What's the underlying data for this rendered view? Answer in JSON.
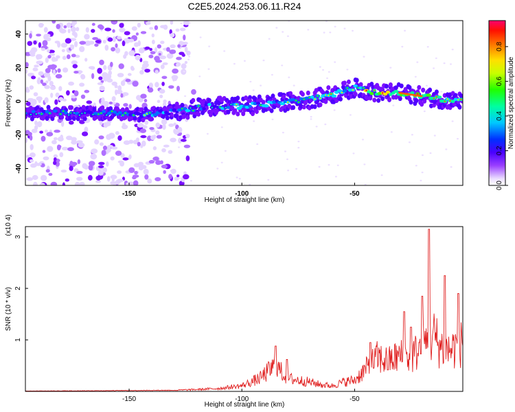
{
  "chart_data": [
    {
      "type": "heatmap",
      "title": "C2E5.2024.253.06.11.R24",
      "xlabel": "Height of straight line (km)",
      "ylabel": "Frequency (Hz)",
      "xlim": [
        -196,
        -2
      ],
      "ylim": [
        -50,
        48
      ],
      "x_ticks": [
        -150,
        -100,
        -50
      ],
      "y_ticks": [
        -40,
        -20,
        0,
        20,
        40
      ],
      "colorbar": {
        "label": "Normalized spectral amplitude",
        "range": [
          0,
          0.95
        ],
        "ticks": [
          0.0,
          0.2,
          0.4,
          0.6,
          0.8
        ]
      },
      "ridge": {
        "description_points_x": [
          -190,
          -175,
          -160,
          -145,
          -130,
          -115,
          -100,
          -85,
          -70,
          -60,
          -50,
          -40,
          -30,
          -20,
          -10,
          -3
        ],
        "description_points_freq": [
          -7,
          -7,
          -7,
          -8,
          -6,
          -3,
          -3,
          -1,
          1,
          4,
          8,
          5,
          5,
          3,
          1,
          0
        ],
        "peak_amplitude_x": [
          -20,
          -30
        ],
        "peak_amplitude": 0.9
      }
    },
    {
      "type": "line",
      "xlabel": "Height of straight line (km)",
      "ylabel": "SNR (10 * v/v)",
      "y_multiplier": "(x10 4)",
      "xlim": [
        -196,
        -2
      ],
      "ylim": [
        0,
        3.2
      ],
      "x_ticks": [
        -150,
        -100,
        -50
      ],
      "y_ticks": [
        1,
        2,
        3
      ],
      "series": [
        {
          "color": "#e02020",
          "envelope_x": [
            -196,
            -160,
            -130,
            -120,
            -110,
            -100,
            -92,
            -85,
            -80,
            -75,
            -70,
            -65,
            -60,
            -55,
            -50,
            -45,
            -40,
            -35,
            -30,
            -25,
            -22,
            -18,
            -15,
            -12,
            -8,
            -5,
            -2
          ],
          "envelope_y": [
            0.01,
            0.02,
            0.03,
            0.05,
            0.08,
            0.15,
            0.35,
            0.7,
            0.35,
            0.3,
            0.25,
            0.18,
            0.15,
            0.25,
            0.3,
            0.6,
            0.9,
            0.8,
            0.95,
            0.9,
            1.1,
            1.3,
            1.5,
            1.2,
            1.1,
            1.2,
            1.3
          ],
          "peaks": [
            [
              -85,
              0.88
            ],
            [
              -80,
              0.62
            ],
            [
              -43,
              0.95
            ],
            [
              -28,
              1.55
            ],
            [
              -25,
              1.25
            ],
            [
              -20,
              1.85
            ],
            [
              -17,
              3.15
            ],
            [
              -10,
              2.25
            ],
            [
              -4,
              1.9
            ]
          ]
        }
      ]
    }
  ]
}
